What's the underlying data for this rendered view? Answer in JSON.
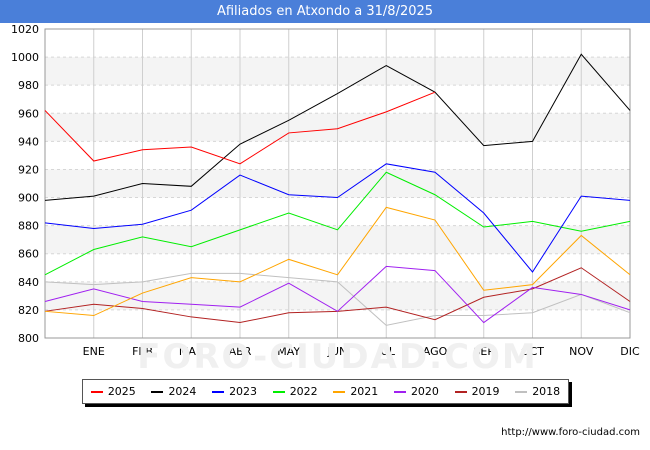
{
  "title": "Afiliados en Atxondo a 31/8/2025",
  "source": "http://www.foro-ciudad.com",
  "watermark": "FORO-CIUDAD.COM",
  "chart_data": {
    "type": "line",
    "title": "Afiliados en Atxondo a 31/8/2025",
    "x": [
      "",
      "ENE",
      "FEB",
      "MAR",
      "ABR",
      "MAY",
      "JUN",
      "JUL",
      "AGO",
      "SEP",
      "OCT",
      "NOV",
      "DIC"
    ],
    "y_ticks": [
      800,
      820,
      840,
      860,
      880,
      900,
      920,
      940,
      960,
      980,
      1000,
      1020
    ],
    "ylim": [
      800,
      1020
    ],
    "grid": true,
    "legend_position": "bottom",
    "series": [
      {
        "name": "2025",
        "color": "#ff0000",
        "values": [
          962,
          926,
          934,
          936,
          924,
          946,
          949,
          961,
          975,
          null,
          null,
          null,
          null
        ]
      },
      {
        "name": "2024",
        "color": "#000000",
        "values": [
          898,
          901,
          910,
          908,
          938,
          955,
          974,
          994,
          975,
          937,
          940,
          1002,
          962
        ]
      },
      {
        "name": "2023",
        "color": "#0000ff",
        "values": [
          882,
          878,
          881,
          891,
          916,
          902,
          900,
          924,
          918,
          889,
          847,
          901,
          898
        ]
      },
      {
        "name": "2022",
        "color": "#00ee00",
        "values": [
          845,
          863,
          872,
          865,
          877,
          889,
          877,
          918,
          902,
          879,
          883,
          876,
          883
        ]
      },
      {
        "name": "2021",
        "color": "#ffa500",
        "values": [
          819,
          816,
          832,
          843,
          840,
          856,
          845,
          893,
          884,
          834,
          838,
          873,
          845
        ]
      },
      {
        "name": "2020",
        "color": "#a020f0",
        "values": [
          826,
          835,
          826,
          824,
          822,
          839,
          819,
          851,
          848,
          811,
          836,
          831,
          820
        ]
      },
      {
        "name": "2019",
        "color": "#b22222",
        "values": [
          819,
          824,
          821,
          815,
          811,
          818,
          819,
          822,
          813,
          829,
          835,
          850,
          826
        ]
      },
      {
        "name": "2018",
        "color": "#c0c0c0",
        "values": [
          840,
          838,
          840,
          846,
          846,
          843,
          840,
          809,
          816,
          816,
          818,
          831,
          818
        ]
      }
    ]
  }
}
